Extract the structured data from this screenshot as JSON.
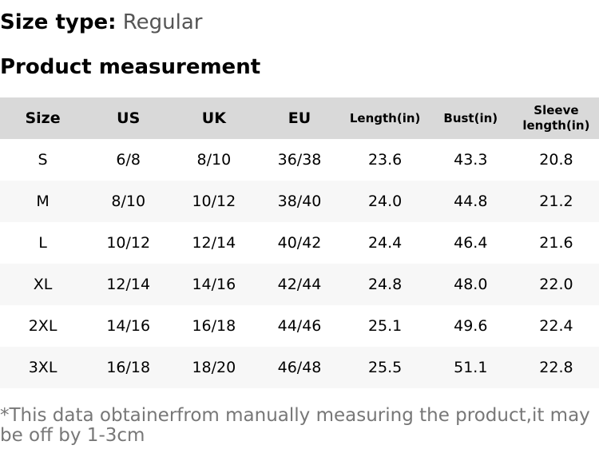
{
  "size_type": {
    "label": "Size type:",
    "value": "Regular"
  },
  "title": "Product measurement",
  "table": {
    "header": [
      "Size",
      "US",
      "UK",
      "EU",
      "Length(in)",
      "Bust(in)",
      "Sleeve length(in)"
    ],
    "rows": [
      [
        "S",
        "6/8",
        "8/10",
        "36/38",
        "23.6",
        "43.3",
        "20.8"
      ],
      [
        "M",
        "8/10",
        "10/12",
        "38/40",
        "24.0",
        "44.8",
        "21.2"
      ],
      [
        "L",
        "10/12",
        "12/14",
        "40/42",
        "24.4",
        "46.4",
        "21.6"
      ],
      [
        "XL",
        "12/14",
        "14/16",
        "42/44",
        "24.8",
        "48.0",
        "22.0"
      ],
      [
        "2XL",
        "14/16",
        "16/18",
        "44/46",
        "25.1",
        "49.6",
        "22.4"
      ],
      [
        "3XL",
        "16/18",
        "18/20",
        "46/48",
        "25.5",
        "51.1",
        "22.8"
      ]
    ]
  },
  "note": "*This data obtainerfrom manually measuring the product,it may be off by 1-3cm"
}
